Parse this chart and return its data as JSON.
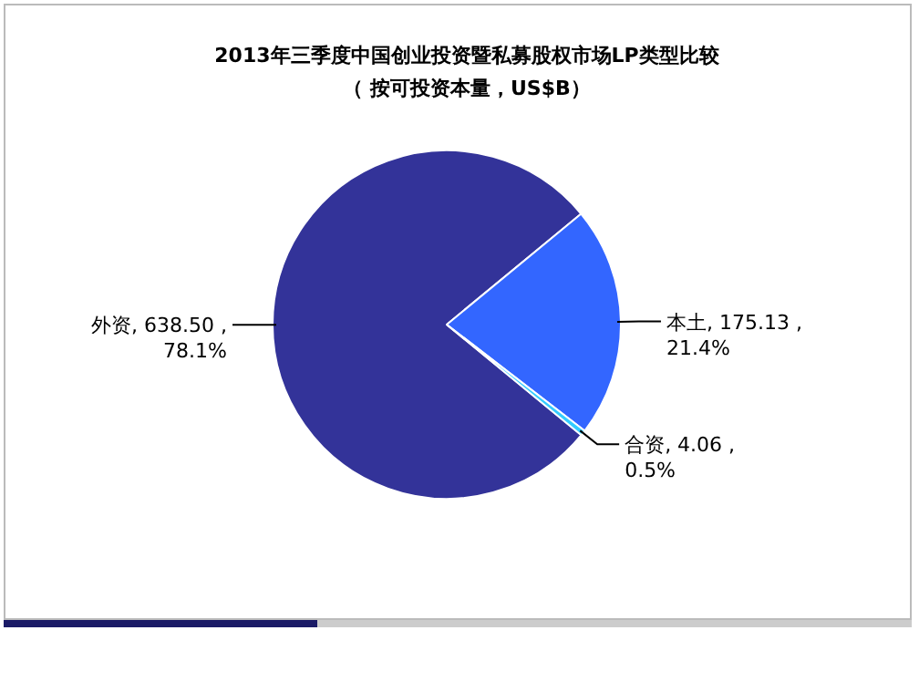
{
  "chart_data": {
    "type": "pie",
    "title": "2013年三季度中国创业投资暨私募股权市场LP类型比较",
    "subtitle": "（ 按可投资本量，US$B）",
    "categories": [
      "外资",
      "本土",
      "合资"
    ],
    "values": [
      638.5,
      175.13,
      4.06
    ],
    "colors": [
      "#333399",
      "#3366ff",
      "#33ccff"
    ],
    "value_labels": [
      "638.50 ,\n78.1%",
      "175.13 ,\n21.4%",
      "4.06 ,\n0.5%"
    ],
    "legend": false
  }
}
